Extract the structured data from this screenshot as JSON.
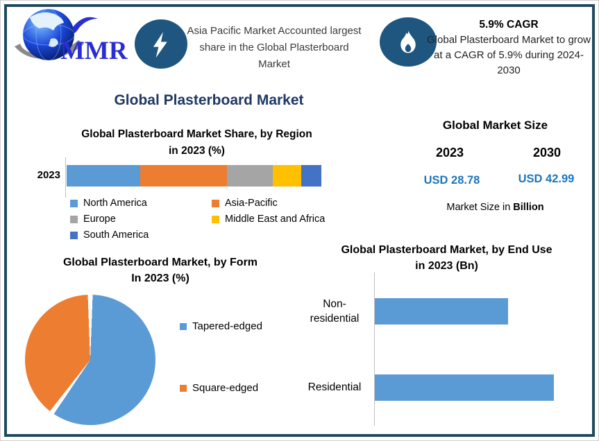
{
  "logo": {
    "text": "MMR"
  },
  "header": {
    "highlight": "Asia Pacific Market Accounted largest share in the Global Plasterboard Market",
    "cagr_title": "5.9% CAGR",
    "cagr_text": "Global Plasterboard Market to grow at a CAGR of 5.9% during 2024-2030"
  },
  "main_title": "Global Plasterboard Market",
  "market_size": {
    "title": "Global Market Size",
    "year_1": "2023",
    "year_2": "2030",
    "value_1": "USD 28.78",
    "value_2": "USD 42.99",
    "footnote_prefix": "Market Size in ",
    "footnote_bold": "Billion"
  },
  "colors": {
    "border": "#1f4a5e",
    "badge_blue": "#1e567f",
    "navy_title": "#1f3864",
    "usd_blue": "#1b75bc",
    "bar_blue": "#5B9BD5"
  },
  "chart_data": [
    {
      "type": "bar",
      "subtype": "stacked-horizontal",
      "title": "Global Plasterboard Market Share, by Region in 2023 (%)",
      "title_line1": "Global Plasterboard Market Share, by Region",
      "title_line2": "in 2023 (%)",
      "category": "2023",
      "xlim": [
        0,
        100
      ],
      "segments": [
        {
          "label": "North America",
          "value": 29,
          "color": "#5B9BD5"
        },
        {
          "label": "Asia-Pacific",
          "value": 34,
          "color": "#ED7D31"
        },
        {
          "label": "Europe",
          "value": 18,
          "color": "#A5A5A5"
        },
        {
          "label": "Middle East and Africa",
          "value": 11,
          "color": "#FFC000"
        },
        {
          "label": "South America",
          "value": 8,
          "color": "#4472C4"
        }
      ],
      "legend_position": "bottom"
    },
    {
      "type": "pie",
      "title": "Global Plasterboard Market, by Form In 2023 (%)",
      "title_line1": "Global Plasterboard Market, by Form",
      "title_line2": "In 2023 (%)",
      "slices": [
        {
          "label": "Tapered-edged",
          "value": 60,
          "color": "#5B9BD5"
        },
        {
          "label": "Square-edged",
          "value": 40,
          "color": "#ED7D31"
        }
      ],
      "legend_position": "right"
    },
    {
      "type": "bar",
      "subtype": "horizontal",
      "title": "Global Plasterboard Market, by End Use in 2023 (Bn)",
      "title_line1": "Global Plasterboard Market, by End Use",
      "title_line2": "in 2023 (Bn)",
      "categories": [
        "Non-residential",
        "Residential"
      ],
      "values": [
        12.3,
        16.5
      ],
      "bar_color": "#5B9BD5",
      "legend_position": "none"
    }
  ]
}
